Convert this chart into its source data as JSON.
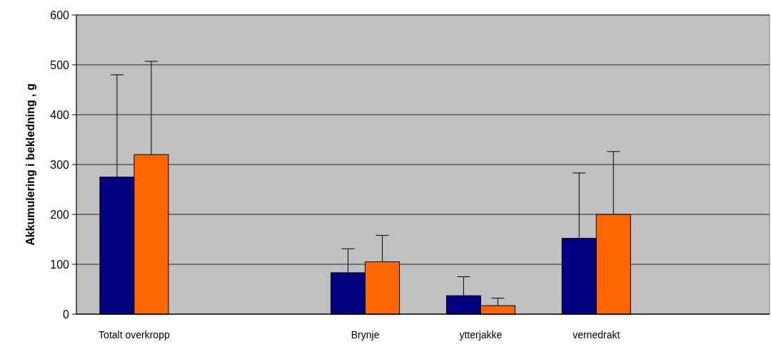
{
  "chart_data": {
    "type": "bar",
    "ylabel": "Akkumulering i bekledning , g",
    "categories": [
      "Totalt overkropp",
      null,
      "Brynje",
      "ytterjakke",
      "vernedrakt",
      null
    ],
    "series": [
      {
        "color": "#000080",
        "values": [
          275,
          null,
          83,
          37,
          152,
          null
        ],
        "errors": [
          [
            275,
            480
          ],
          null,
          [
            83,
            131
          ],
          [
            37,
            75
          ],
          [
            152,
            283
          ],
          null
        ]
      },
      {
        "color": "#ff6600",
        "values": [
          320,
          null,
          105,
          17,
          200,
          null
        ],
        "errors": [
          [
            320,
            507
          ],
          null,
          [
            105,
            158
          ],
          [
            17,
            32
          ],
          [
            200,
            326
          ],
          null
        ]
      }
    ],
    "ylim": [
      0,
      600
    ],
    "yticks": [
      0,
      100,
      200,
      300,
      400,
      500,
      600
    ],
    "grid": "y"
  }
}
